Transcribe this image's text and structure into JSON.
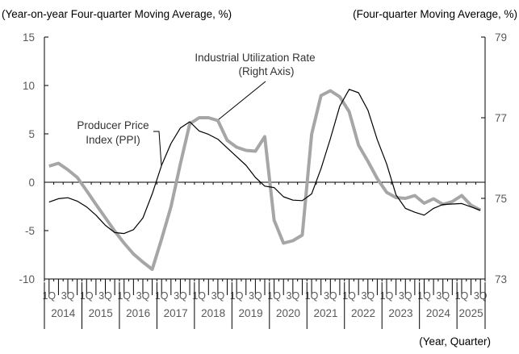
{
  "chart_data": {
    "type": "line",
    "left_axis_title": "(Year-on-year Four-quarter Moving Average, %)",
    "right_axis_title": "(Four-quarter Moving Average, %)",
    "xlabel": "(Year, Quarter)",
    "left_ylim": [
      -10,
      15
    ],
    "left_ticks": [
      "15",
      "10",
      "5",
      "0",
      "-5",
      "-10"
    ],
    "right_ylim": [
      73,
      79
    ],
    "right_ticks": [
      "79",
      "77",
      "75",
      "73"
    ],
    "years": [
      "2014",
      "2015",
      "2016",
      "2017",
      "2018",
      "2019",
      "2020",
      "2021",
      "2022",
      "2023",
      "2024",
      "2025"
    ],
    "quarter_labels": [
      "1Q",
      "3Q"
    ],
    "x_start": "2014Q1",
    "x_end": "2025Q3",
    "grid": false,
    "series": [
      {
        "name": "Producer Price Index (PPI)",
        "axis": "left",
        "color": "#000000",
        "values": [
          -2.05,
          -1.7,
          -1.6,
          -1.95,
          -2.55,
          -3.4,
          -4.45,
          -5.2,
          -5.3,
          -4.9,
          -3.7,
          -1.2,
          1.75,
          4.0,
          5.6,
          6.25,
          5.3,
          4.95,
          4.45,
          3.55,
          2.65,
          1.75,
          0.5,
          -0.4,
          -0.55,
          -1.5,
          -1.85,
          -1.9,
          -1.2,
          1.4,
          4.5,
          7.85,
          9.6,
          9.25,
          7.45,
          4.4,
          1.9,
          -1.3,
          -2.7,
          -3.1,
          -3.4,
          -2.7,
          -2.3,
          -2.25,
          -2.2,
          -2.55,
          -2.9
        ]
      },
      {
        "name": "Industrial Utilization Rate",
        "label_line2": "(Right Axis)",
        "axis": "right",
        "color": "#a6a6a6",
        "values": [
          75.8,
          75.87,
          75.71,
          75.52,
          75.19,
          74.85,
          74.52,
          74.19,
          73.89,
          73.62,
          73.42,
          73.24,
          73.99,
          74.79,
          75.85,
          76.85,
          77.0,
          77.0,
          76.93,
          76.44,
          76.27,
          76.19,
          76.17,
          76.53,
          74.46,
          73.89,
          73.95,
          74.09,
          76.59,
          77.55,
          77.67,
          77.52,
          77.15,
          76.32,
          75.92,
          75.49,
          75.15,
          75.02,
          75.0,
          75.07,
          74.88,
          74.99,
          74.85,
          74.92,
          75.07,
          74.83,
          74.71
        ]
      }
    ]
  }
}
